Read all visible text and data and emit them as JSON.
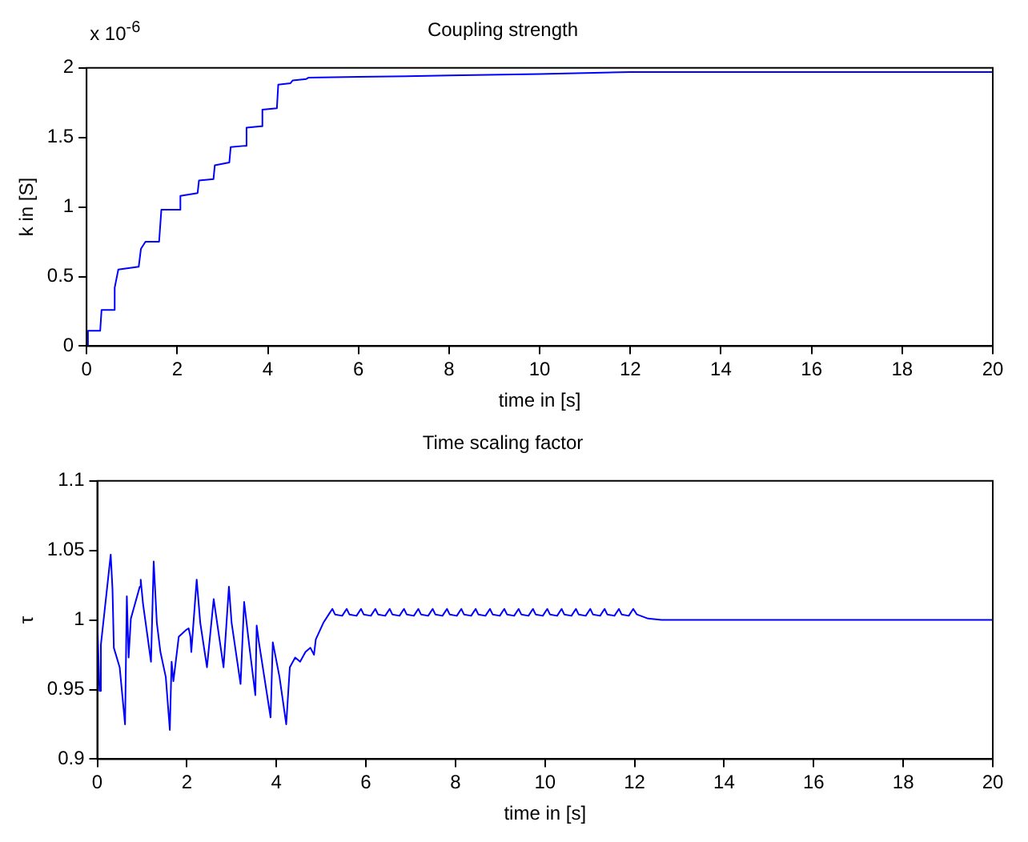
{
  "chart_data": [
    {
      "type": "line",
      "title": "Coupling strength",
      "xlabel": "time in [s]",
      "ylabel": "k in [S]",
      "annotations": [
        "x 10$^{-6}$"
      ],
      "xlim": [
        0,
        20
      ],
      "xticks": [
        0,
        2,
        4,
        6,
        8,
        10,
        12,
        14,
        16,
        18,
        20
      ],
      "ylim": [
        0,
        2
      ],
      "yticks": [
        0,
        0.5,
        1,
        1.5,
        2
      ],
      "grid": false,
      "legend": false,
      "marker": "none",
      "line_style": "solid",
      "series": [
        {
          "color": "#0000ff",
          "x": [
            0,
            0.03,
            0.3,
            0.33,
            0.6,
            0.62,
            0.7,
            1.15,
            1.2,
            1.3,
            1.6,
            1.65,
            2.05,
            2.07,
            2.45,
            2.48,
            2.8,
            2.83,
            3.15,
            3.18,
            3.5,
            3.53,
            3.85,
            3.88,
            4.2,
            4.23,
            4.5,
            4.55,
            4.85,
            4.9,
            6,
            8,
            10,
            12,
            20
          ],
          "values": [
            0,
            0.11,
            0.11,
            0.26,
            0.26,
            0.42,
            0.55,
            0.57,
            0.7,
            0.75,
            0.75,
            0.98,
            0.98,
            1.08,
            1.1,
            1.19,
            1.2,
            1.3,
            1.32,
            1.43,
            1.44,
            1.57,
            1.58,
            1.7,
            1.71,
            1.88,
            1.89,
            1.91,
            1.92,
            1.93,
            1.935,
            1.945,
            1.955,
            1.97,
            1.97
          ]
        }
      ]
    },
    {
      "type": "line",
      "title": "Time scaling factor",
      "xlabel": "time in [s]",
      "ylabel": "τ",
      "xlim": [
        0,
        20
      ],
      "xticks": [
        0,
        2,
        4,
        6,
        8,
        10,
        12,
        14,
        16,
        18,
        20
      ],
      "ylim": [
        0.9,
        1.1
      ],
      "yticks": [
        0.9,
        0.95,
        1,
        1.05,
        1.1
      ],
      "grid": false,
      "legend": false,
      "marker": "none",
      "line_style": "solid",
      "series": [
        {
          "color": "#0000ff",
          "x": [
            0,
            0.05,
            0.08,
            0.3,
            0.34,
            0.37,
            0.5,
            0.62,
            0.66,
            0.7,
            0.75,
            0.95,
            0.97,
            1.02,
            1.2,
            1.26,
            1.33,
            1.41,
            1.53,
            1.62,
            1.66,
            1.7,
            1.82,
            1.99,
            2.04,
            2.08,
            2.1,
            2.22,
            2.3,
            2.45,
            2.6,
            2.82,
            2.94,
            3.0,
            3.2,
            3.28,
            3.4,
            3.53,
            3.56,
            3.61,
            3.87,
            3.92,
            4.07,
            4.22,
            4.3,
            4.42,
            4.53,
            4.65,
            4.76,
            4.84,
            4.88,
            5.05,
            5.19,
            5.25,
            5.31,
            5.47,
            5.57,
            5.63,
            5.79,
            5.89,
            5.95,
            6.11,
            6.21,
            6.27,
            6.43,
            6.53,
            6.59,
            6.75,
            6.85,
            6.91,
            7.07,
            7.17,
            7.23,
            7.39,
            7.49,
            7.55,
            7.71,
            7.81,
            7.87,
            8.03,
            8.13,
            8.19,
            8.35,
            8.45,
            8.51,
            8.67,
            8.77,
            8.83,
            8.99,
            9.09,
            9.15,
            9.31,
            9.41,
            9.47,
            9.63,
            9.73,
            9.79,
            9.95,
            10.05,
            10.11,
            10.27,
            10.37,
            10.43,
            10.59,
            10.69,
            10.75,
            10.91,
            11.01,
            11.07,
            11.23,
            11.33,
            11.39,
            11.55,
            11.65,
            11.71,
            11.87,
            11.97,
            12.05,
            12.3,
            12.6,
            20
          ],
          "values": [
            1.0,
            0.949,
            0.982,
            1.047,
            1.022,
            0.98,
            0.966,
            0.925,
            1.017,
            0.973,
            1.001,
            1.024,
            1.029,
            1.012,
            0.97,
            1.042,
            0.998,
            0.977,
            0.959,
            0.921,
            0.97,
            0.956,
            0.988,
            0.993,
            0.994,
            0.988,
            0.977,
            1.029,
            0.998,
            0.966,
            1.015,
            0.966,
            1.024,
            0.998,
            0.954,
            1.013,
            0.98,
            0.946,
            0.996,
            0.984,
            0.93,
            0.984,
            0.959,
            0.925,
            0.966,
            0.973,
            0.97,
            0.977,
            0.98,
            0.975,
            0.986,
            0.998,
            1.005,
            1.008,
            1.004,
            1.003,
            1.008,
            1.004,
            1.003,
            1.008,
            1.004,
            1.003,
            1.008,
            1.004,
            1.003,
            1.008,
            1.004,
            1.003,
            1.008,
            1.004,
            1.003,
            1.008,
            1.004,
            1.003,
            1.008,
            1.004,
            1.003,
            1.008,
            1.004,
            1.003,
            1.008,
            1.004,
            1.003,
            1.008,
            1.004,
            1.003,
            1.008,
            1.004,
            1.003,
            1.008,
            1.004,
            1.003,
            1.008,
            1.004,
            1.003,
            1.008,
            1.004,
            1.003,
            1.008,
            1.004,
            1.003,
            1.008,
            1.004,
            1.003,
            1.008,
            1.004,
            1.003,
            1.008,
            1.004,
            1.003,
            1.008,
            1.004,
            1.003,
            1.008,
            1.004,
            1.003,
            1.008,
            1.004,
            1.001,
            1.0,
            1.0
          ]
        }
      ]
    }
  ]
}
